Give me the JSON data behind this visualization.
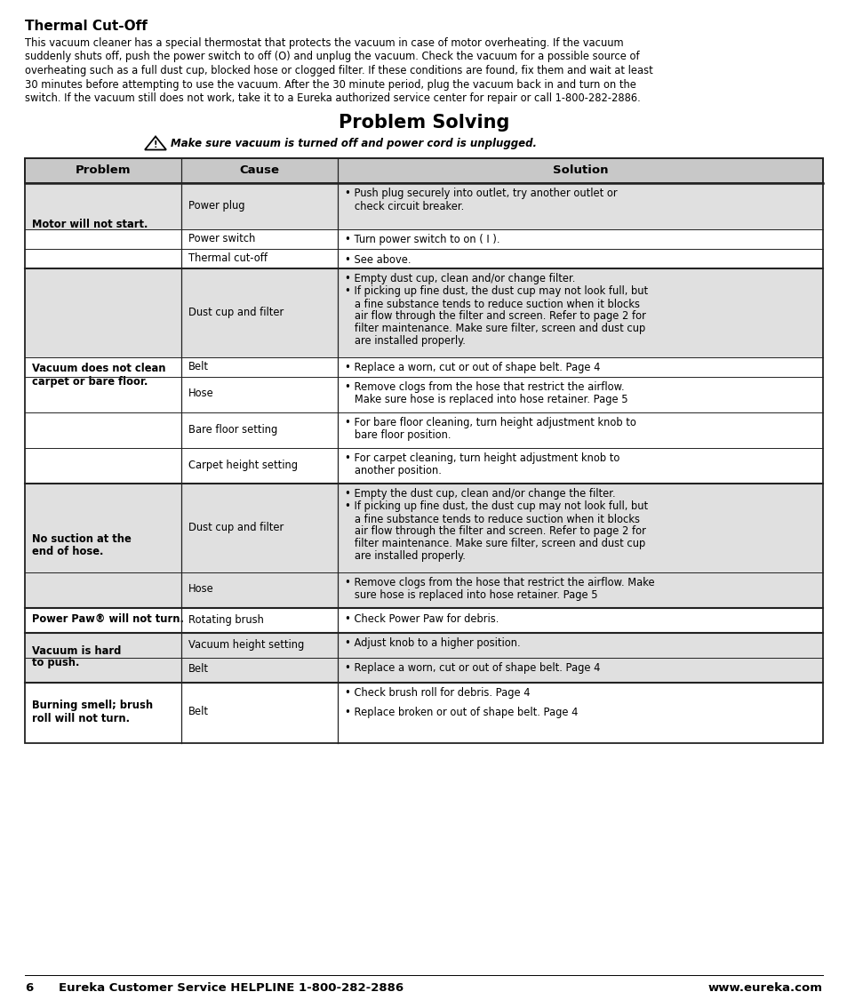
{
  "bg_color": "#ffffff",
  "thermal_title": "Thermal Cut-Off",
  "thermal_lines": [
    "This vacuum cleaner has a special thermostat that protects the vacuum in case of motor overheating. If the vacuum",
    "suddenly shuts off, push the power switch to off (O) and unplug the vacuum. Check the vacuum for a possible source of",
    "overheating such as a full dust cup, blocked hose or clogged filter. If these conditions are found, fix them and wait at least",
    "30 minutes before attempting to use the vacuum. After the 30 minute period, plug the vacuum back in and turn on the",
    "switch. If the vacuum still does not work, take it to a Eureka authorized service center for repair or call 1-800-282-2886."
  ],
  "problem_solving_title": "Problem Solving",
  "warning_text": "Make sure vacuum is turned off and power cord is unplugged.",
  "header_bg": "#c8c8c8",
  "row_bg_light": "#e0e0e0",
  "row_bg_white": "#ffffff",
  "table_border_color": "#222222",
  "footer_page": "6",
  "footer_left": "Eureka Customer Service HELPLINE 1-800-282-2886",
  "footer_right": "www.eureka.com",
  "rows": [
    {
      "problem": "Motor will not start.",
      "cause": "Power plug",
      "solution": [
        "• Push plug securely into outlet, try another outlet or",
        "   check circuit breaker."
      ],
      "shaded": true,
      "group_start": true
    },
    {
      "problem": "",
      "cause": "Power switch",
      "solution": [
        "• Turn power switch to on ( I )."
      ],
      "shaded": false,
      "group_start": false
    },
    {
      "problem": "",
      "cause": "Thermal cut-off",
      "solution": [
        "• See above."
      ],
      "shaded": false,
      "group_start": false
    },
    {
      "problem": "Vacuum does not clean\ncarpet or bare floor.",
      "cause": "Dust cup and filter",
      "solution": [
        "• Empty dust cup, clean and/or change filter.",
        "• If picking up fine dust, the dust cup may not look full, but",
        "   a fine substance tends to reduce suction when it blocks",
        "   air flow through the filter and screen. Refer to page 2 for",
        "   filter maintenance. Make sure filter, screen and dust cup",
        "   are installed properly."
      ],
      "shaded": true,
      "group_start": true
    },
    {
      "problem": "",
      "cause": "Belt",
      "solution": [
        "• Replace a worn, cut or out of shape belt. Page 4"
      ],
      "shaded": false,
      "group_start": false
    },
    {
      "problem": "",
      "cause": "Hose",
      "solution": [
        "• Remove clogs from the hose that restrict the airflow.",
        "   Make sure hose is replaced into hose retainer. Page 5"
      ],
      "shaded": false,
      "group_start": false
    },
    {
      "problem": "",
      "cause": "Bare floor setting",
      "solution": [
        "• For bare floor cleaning, turn height adjustment knob to",
        "   bare floor position."
      ],
      "shaded": false,
      "group_start": false
    },
    {
      "problem": "",
      "cause": "Carpet height setting",
      "solution": [
        "• For carpet cleaning, turn height adjustment knob to",
        "   another position."
      ],
      "shaded": false,
      "group_start": false
    },
    {
      "problem": "No suction at the\nend of hose.",
      "cause": "Dust cup and filter",
      "solution": [
        "• Empty the dust cup, clean and/or change the filter.",
        "• If picking up fine dust, the dust cup may not look full, but",
        "   a fine substance tends to reduce suction when it blocks",
        "   air flow through the filter and screen. Refer to page 2 for",
        "   filter maintenance. Make sure filter, screen and dust cup",
        "   are installed properly."
      ],
      "shaded": true,
      "group_start": true
    },
    {
      "problem": "",
      "cause": "Hose",
      "solution": [
        "• Remove clogs from the hose that restrict the airflow. Make",
        "   sure hose is replaced into hose retainer. Page 5"
      ],
      "shaded": true,
      "group_start": false
    },
    {
      "problem": "Power Paw® will not turn.",
      "cause": "Rotating brush",
      "solution": [
        "• Check Power Paw for debris."
      ],
      "shaded": false,
      "group_start": true
    },
    {
      "problem": "Vacuum is hard\nto push.",
      "cause": "Vacuum height setting",
      "solution": [
        "• Adjust knob to a higher position."
      ],
      "shaded": true,
      "group_start": true
    },
    {
      "problem": "",
      "cause": "Belt",
      "solution": [
        "• Replace a worn, cut or out of shape belt. Page 4"
      ],
      "shaded": true,
      "group_start": false
    },
    {
      "problem": "Burning smell; brush\nroll will not turn.",
      "cause": "Belt",
      "solution": [
        "• Check brush roll for debris. Page 4",
        "",
        "• Replace broken or out of shape belt. Page 4"
      ],
      "shaded": false,
      "group_start": true
    }
  ]
}
